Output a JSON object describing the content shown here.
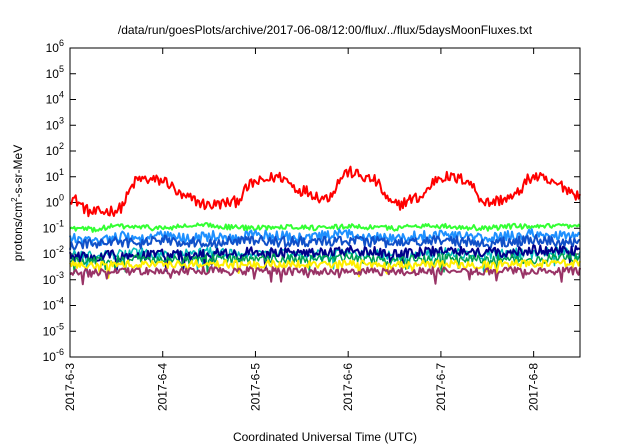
{
  "chart_data": {
    "type": "line",
    "title": "/data/run/goesPlots/archive/2017-06-08/12:00/flux/../flux/5daysMoonFluxes.txt",
    "xlabel": "Coordinated Universal Time (UTC)",
    "ylabel": {
      "base": "protons/cm",
      "sup": "2",
      "rest": "-s-sr-MeV"
    },
    "y_scale": "log",
    "ylim": [
      1e-06,
      1000000.0
    ],
    "xlim": [
      "2017-06-03",
      "2017-06-08 12:00"
    ],
    "grid": false,
    "legend": "none",
    "x_ticks": [
      {
        "label": "2017-6-3",
        "at": "2017-06-03"
      },
      {
        "label": "2017-6-4",
        "at": "2017-06-04"
      },
      {
        "label": "2017-6-5",
        "at": "2017-06-05"
      },
      {
        "label": "2017-6-6",
        "at": "2017-06-06"
      },
      {
        "label": "2017-6-7",
        "at": "2017-06-07"
      },
      {
        "label": "2017-6-8",
        "at": "2017-06-08"
      }
    ],
    "y_ticks": [
      {
        "base": "10",
        "exp": "-6",
        "value": 1e-06
      },
      {
        "base": "10",
        "exp": "-5",
        "value": 1e-05
      },
      {
        "base": "10",
        "exp": "-4",
        "value": 0.0001
      },
      {
        "base": "10",
        "exp": "-3",
        "value": 0.001
      },
      {
        "base": "10",
        "exp": "-2",
        "value": 0.01
      },
      {
        "base": "10",
        "exp": "-1",
        "value": 0.1
      },
      {
        "base": "10",
        "exp": "0",
        "value": 1
      },
      {
        "base": "10",
        "exp": "1",
        "value": 10
      },
      {
        "base": "10",
        "exp": "2",
        "value": 100
      },
      {
        "base": "10",
        "exp": "3",
        "value": 1000
      },
      {
        "base": "10",
        "exp": "4",
        "value": 10000
      },
      {
        "base": "10",
        "exp": "5",
        "value": 100000
      },
      {
        "base": "10",
        "exp": "6",
        "value": 1000000
      }
    ],
    "x": [
      "2017-06-03 00:00",
      "2017-06-03 06:00",
      "2017-06-03 12:00",
      "2017-06-03 18:00",
      "2017-06-04 00:00",
      "2017-06-04 06:00",
      "2017-06-04 12:00",
      "2017-06-04 18:00",
      "2017-06-05 00:00",
      "2017-06-05 06:00",
      "2017-06-05 12:00",
      "2017-06-05 18:00",
      "2017-06-06 00:00",
      "2017-06-06 06:00",
      "2017-06-06 12:00",
      "2017-06-06 18:00",
      "2017-06-07 00:00",
      "2017-06-07 06:00",
      "2017-06-07 12:00",
      "2017-06-07 18:00",
      "2017-06-08 00:00",
      "2017-06-08 06:00",
      "2017-06-08 12:00"
    ],
    "series": [
      {
        "color": "#ff0000",
        "width": 2,
        "values": [
          1.5,
          0.4,
          0.5,
          8,
          7,
          1.5,
          0.8,
          1,
          6,
          10,
          3,
          1.5,
          15,
          8,
          0.8,
          1.5,
          10,
          8,
          1,
          1.5,
          10,
          5,
          2
        ]
      },
      {
        "color": "#33ff33",
        "width": 2,
        "values": [
          0.1,
          0.09,
          0.12,
          0.11,
          0.1,
          0.12,
          0.13,
          0.11,
          0.1,
          0.12,
          0.11,
          0.1,
          0.12,
          0.11,
          0.1,
          0.13,
          0.12,
          0.11,
          0.1,
          0.12,
          0.11,
          0.12,
          0.11
        ]
      },
      {
        "color": "#1e90ff",
        "width": 2,
        "values": [
          0.04,
          0.03,
          0.05,
          0.04,
          0.05,
          0.04,
          0.05,
          0.04,
          0.06,
          0.05,
          0.04,
          0.05,
          0.06,
          0.05,
          0.04,
          0.05,
          0.06,
          0.05,
          0.04,
          0.05,
          0.06,
          0.05,
          0.05
        ]
      },
      {
        "color": "#1050c8",
        "width": 2,
        "values": [
          0.02,
          0.025,
          0.03,
          0.025,
          0.035,
          0.03,
          0.028,
          0.03,
          0.035,
          0.03,
          0.03,
          0.03,
          0.035,
          0.03,
          0.025,
          0.03,
          0.035,
          0.03,
          0.025,
          0.03,
          0.035,
          0.03,
          0.03
        ]
      },
      {
        "color": "#00bbbb",
        "width": 1.5,
        "values": [
          0.009,
          0.008,
          0.01,
          0.011,
          0.009,
          0.01,
          0.012,
          0.01,
          0.009,
          0.011,
          0.01,
          0.009,
          0.011,
          0.01,
          0.008,
          0.01,
          0.012,
          0.01,
          0.009,
          0.011,
          0.01,
          0.012,
          0.011
        ]
      },
      {
        "color": "#00008b",
        "width": 2,
        "values": [
          0.008,
          0.007,
          0.009,
          0.009,
          0.01,
          0.009,
          0.011,
          0.01,
          0.012,
          0.011,
          0.01,
          0.011,
          0.013,
          0.012,
          0.01,
          0.011,
          0.014,
          0.012,
          0.011,
          0.012,
          0.014,
          0.013,
          0.013
        ]
      },
      {
        "color": "#00a050",
        "width": 1.5,
        "values": [
          0.006,
          0.005,
          0.006,
          0.007,
          0.006,
          0.006,
          0.007,
          0.006,
          0.006,
          0.007,
          0.006,
          0.006,
          0.007,
          0.006,
          0.005,
          0.006,
          0.007,
          0.006,
          0.006,
          0.007,
          0.006,
          0.007,
          0.007
        ]
      },
      {
        "color": "#ffee00",
        "width": 2,
        "values": [
          0.004,
          0.0035,
          0.004,
          0.0042,
          0.004,
          0.004,
          0.0043,
          0.004,
          0.0038,
          0.0042,
          0.004,
          0.0039,
          0.0042,
          0.004,
          0.0036,
          0.004,
          0.0043,
          0.004,
          0.0038,
          0.0042,
          0.004,
          0.0043,
          0.0042
        ]
      },
      {
        "color": "#993366",
        "width": 2,
        "values": [
          0.0022,
          0.0018,
          0.0022,
          0.0022,
          0.0021,
          0.0022,
          0.0023,
          0.0021,
          0.0022,
          0.0022,
          0.0021,
          0.0021,
          0.0022,
          0.0021,
          0.002,
          0.0021,
          0.0022,
          0.0021,
          0.0021,
          0.0022,
          0.0021,
          0.0022,
          0.0022
        ]
      }
    ],
    "noise": [
      0.45,
      0.2,
      0.4,
      0.4,
      0.4,
      0.4,
      0.35,
      0.3,
      0.3
    ]
  }
}
